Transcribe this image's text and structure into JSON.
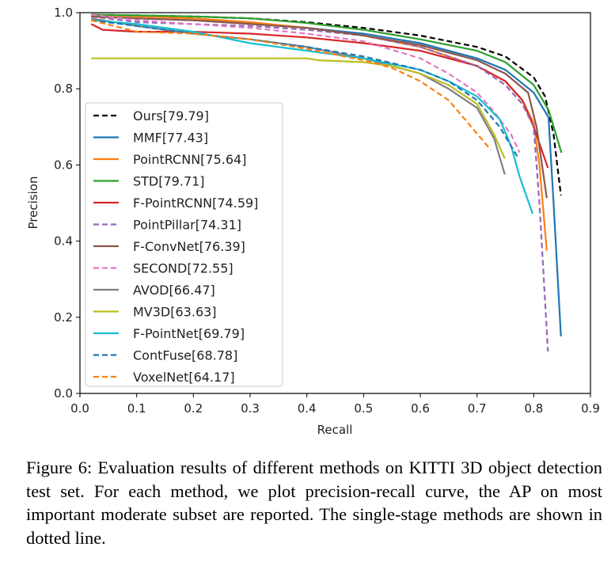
{
  "chart_data": {
    "type": "line",
    "title": "",
    "xlabel": "Recall",
    "ylabel": "Precision",
    "xlim": [
      0.0,
      0.9
    ],
    "ylim": [
      0.0,
      1.0
    ],
    "xticks": [
      "0.0",
      "0.1",
      "0.2",
      "0.3",
      "0.4",
      "0.5",
      "0.6",
      "0.7",
      "0.8",
      "0.9"
    ],
    "yticks": [
      "0.0",
      "0.2",
      "0.4",
      "0.6",
      "0.8",
      "1.0"
    ],
    "grid": false,
    "legend_position": "lower-left",
    "series": [
      {
        "name": "Ours[79.79]",
        "color": "#000000",
        "dashed": true,
        "x": [
          0.02,
          0.1,
          0.2,
          0.3,
          0.4,
          0.5,
          0.6,
          0.7,
          0.75,
          0.8,
          0.82,
          0.835,
          0.848
        ],
        "y": [
          0.995,
          0.993,
          0.99,
          0.985,
          0.975,
          0.96,
          0.94,
          0.91,
          0.885,
          0.83,
          0.78,
          0.68,
          0.52
        ]
      },
      {
        "name": "MMF[77.43]",
        "color": "#1f77b4",
        "dashed": false,
        "x": [
          0.02,
          0.1,
          0.2,
          0.3,
          0.4,
          0.5,
          0.6,
          0.7,
          0.75,
          0.8,
          0.826,
          0.835,
          0.848
        ],
        "y": [
          0.99,
          0.985,
          0.98,
          0.972,
          0.96,
          0.945,
          0.92,
          0.88,
          0.85,
          0.79,
          0.725,
          0.5,
          0.15
        ]
      },
      {
        "name": "PointRCNN[75.64]",
        "color": "#ff7f0e",
        "dashed": false,
        "x": [
          0.02,
          0.1,
          0.2,
          0.3,
          0.4,
          0.5,
          0.6,
          0.7,
          0.75,
          0.78,
          0.8,
          0.81,
          0.823
        ],
        "y": [
          0.995,
          0.99,
          0.985,
          0.975,
          0.96,
          0.94,
          0.91,
          0.86,
          0.82,
          0.77,
          0.71,
          0.6,
          0.375
        ]
      },
      {
        "name": "STD[79.71]",
        "color": "#2ca02c",
        "dashed": false,
        "x": [
          0.02,
          0.1,
          0.2,
          0.3,
          0.4,
          0.5,
          0.6,
          0.7,
          0.75,
          0.8,
          0.826,
          0.849
        ],
        "y": [
          0.995,
          0.993,
          0.99,
          0.985,
          0.973,
          0.955,
          0.93,
          0.9,
          0.87,
          0.81,
          0.745,
          0.632
        ]
      },
      {
        "name": "F-PointRCNN[74.59]",
        "color": "#d62728",
        "dashed": false,
        "x": [
          0.02,
          0.04,
          0.1,
          0.2,
          0.3,
          0.4,
          0.5,
          0.6,
          0.7,
          0.75,
          0.78,
          0.8,
          0.825
        ],
        "y": [
          0.97,
          0.955,
          0.95,
          0.95,
          0.945,
          0.935,
          0.92,
          0.9,
          0.86,
          0.82,
          0.77,
          0.7,
          0.592
        ]
      },
      {
        "name": "PointPillar[74.31]",
        "color": "#9467bd",
        "dashed": true,
        "x": [
          0.02,
          0.1,
          0.2,
          0.3,
          0.4,
          0.5,
          0.6,
          0.7,
          0.75,
          0.78,
          0.8,
          0.81,
          0.825
        ],
        "y": [
          0.99,
          0.975,
          0.97,
          0.965,
          0.955,
          0.94,
          0.91,
          0.86,
          0.81,
          0.76,
          0.7,
          0.5,
          0.11
        ]
      },
      {
        "name": "F-ConvNet[76.39]",
        "color": "#8c564b",
        "dashed": false,
        "x": [
          0.02,
          0.1,
          0.2,
          0.3,
          0.4,
          0.5,
          0.6,
          0.7,
          0.75,
          0.79,
          0.805,
          0.823
        ],
        "y": [
          0.99,
          0.985,
          0.98,
          0.97,
          0.96,
          0.94,
          0.915,
          0.875,
          0.84,
          0.79,
          0.7,
          0.513
        ]
      },
      {
        "name": "SECOND[72.55]",
        "color": "#e377c2",
        "dashed": true,
        "x": [
          0.02,
          0.1,
          0.2,
          0.3,
          0.4,
          0.5,
          0.6,
          0.65,
          0.7,
          0.73,
          0.76,
          0.775
        ],
        "y": [
          0.995,
          0.98,
          0.97,
          0.96,
          0.945,
          0.925,
          0.88,
          0.84,
          0.79,
          0.74,
          0.68,
          0.633
        ]
      },
      {
        "name": "AVOD[66.47]",
        "color": "#7f7f7f",
        "dashed": false,
        "x": [
          0.02,
          0.1,
          0.2,
          0.3,
          0.4,
          0.5,
          0.6,
          0.65,
          0.7,
          0.73,
          0.749
        ],
        "y": [
          0.985,
          0.965,
          0.945,
          0.93,
          0.91,
          0.88,
          0.84,
          0.8,
          0.75,
          0.67,
          0.575
        ]
      },
      {
        "name": "MV3D[63.63]",
        "color": "#bcbd22",
        "dashed": false,
        "x": [
          0.02,
          0.1,
          0.2,
          0.3,
          0.4,
          0.42,
          0.5,
          0.55,
          0.6,
          0.65,
          0.7,
          0.73,
          0.749
        ],
        "y": [
          0.88,
          0.88,
          0.88,
          0.88,
          0.88,
          0.875,
          0.87,
          0.86,
          0.84,
          0.81,
          0.76,
          0.68,
          0.617
        ]
      },
      {
        "name": "F-PointNet[69.79]",
        "color": "#17becf",
        "dashed": false,
        "x": [
          0.02,
          0.1,
          0.2,
          0.3,
          0.4,
          0.5,
          0.6,
          0.65,
          0.7,
          0.74,
          0.76,
          0.775,
          0.798
        ],
        "y": [
          0.98,
          0.97,
          0.95,
          0.92,
          0.9,
          0.88,
          0.85,
          0.82,
          0.78,
          0.72,
          0.65,
          0.57,
          0.472
        ]
      },
      {
        "name": "ContFuse[68.78]",
        "color": "#1f77b4",
        "dashed": true,
        "x": [
          0.02,
          0.1,
          0.2,
          0.3,
          0.4,
          0.5,
          0.6,
          0.65,
          0.7,
          0.74,
          0.773
        ],
        "y": [
          0.98,
          0.965,
          0.945,
          0.93,
          0.91,
          0.885,
          0.85,
          0.82,
          0.77,
          0.7,
          0.617
        ]
      },
      {
        "name": "VoxelNet[64.17]",
        "color": "#ff7f0e",
        "dashed": true,
        "x": [
          0.02,
          0.1,
          0.2,
          0.3,
          0.4,
          0.5,
          0.55,
          0.6,
          0.65,
          0.69,
          0.724
        ],
        "y": [
          0.98,
          0.95,
          0.945,
          0.93,
          0.905,
          0.875,
          0.855,
          0.82,
          0.77,
          0.7,
          0.64
        ]
      }
    ]
  },
  "caption": "Figure 6:  Evaluation results of different methods on KITTI 3D object detection test set. For each method, we plot precision-recall curve, the AP on most important moderate subset are reported. The single-stage methods are shown in dotted line."
}
